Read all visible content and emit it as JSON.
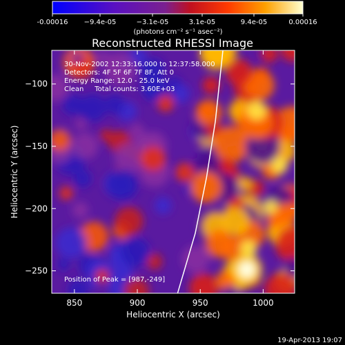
{
  "chart_data": {
    "type": "heatmap",
    "title": "Reconstructed RHESSI Image",
    "xlabel": "Heliocentric X (arcsec)",
    "ylabel": "Heliocentric Y (arcsec)",
    "xlim": [
      832,
      1025
    ],
    "ylim": [
      -268,
      -73
    ],
    "x_ticks": [
      850,
      900,
      950,
      1000
    ],
    "y_ticks": [
      -100,
      -150,
      -200,
      -250
    ],
    "colorbar": {
      "range": [
        -0.00016,
        0.00016
      ],
      "tick_labels": [
        "-0.00016",
        "−9.4e-05",
        "−3.1e-05",
        "3.1e-05",
        "9.4e-05",
        "0.00016"
      ],
      "unit_label": "(photons cm⁻² s⁻¹ asec⁻²)",
      "colormap": [
        "#0000ff",
        "#4a00c8",
        "#7d2aa8",
        "#c21a2a",
        "#ff3300",
        "#ff8c00",
        "#ffd000",
        "#ffffd0"
      ]
    },
    "annotations": [
      "30-Nov-2002 12:33:16.000 to 12:37:58.000",
      "Detectors: 4F 5F 6F 7F 8F, Att 0",
      "Energy Range: 12.0 - 25.0 keV",
      "Clean     Total counts: 3.60E+03"
    ],
    "peak_label": "Position of Peak = [987,-249]",
    "peak": [
      987,
      -249
    ],
    "limb_curve": [
      [
        932,
        -268
      ],
      [
        946,
        -220
      ],
      [
        955,
        -175
      ],
      [
        962,
        -130
      ],
      [
        968,
        -73
      ]
    ]
  },
  "timestamp": "19-Apr-2013 19:07"
}
